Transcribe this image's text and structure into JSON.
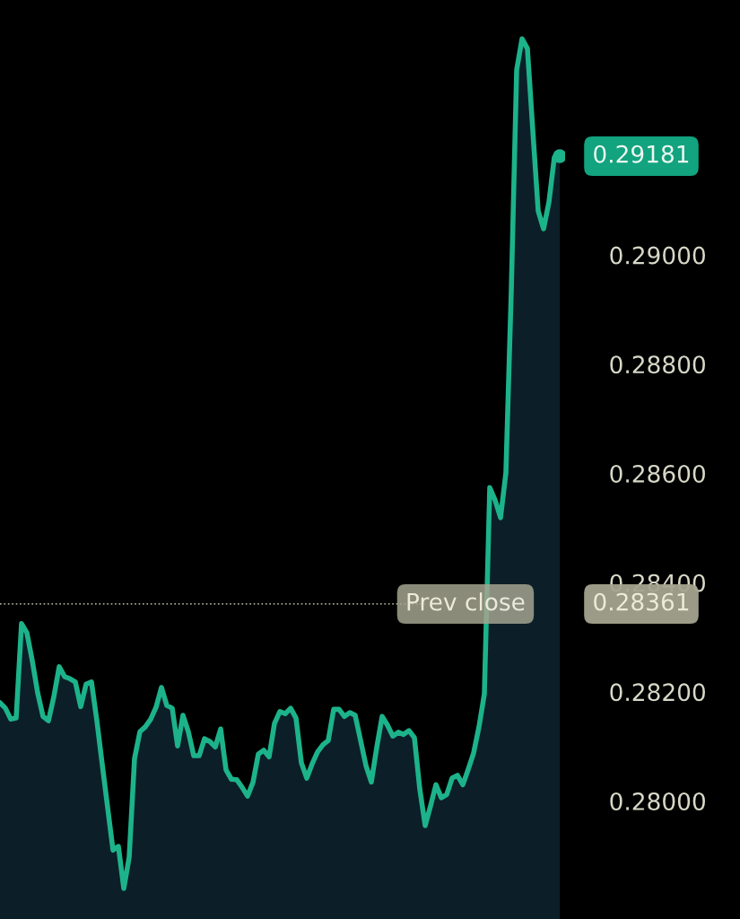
{
  "chart_data": {
    "type": "area",
    "categories": [
      null,
      null,
      null,
      null,
      null,
      null,
      null,
      null,
      null,
      null,
      null,
      null,
      null,
      null,
      null,
      null,
      null,
      null,
      null,
      null,
      null,
      null,
      null,
      null,
      null,
      null,
      null,
      null,
      null,
      null,
      null,
      null,
      null,
      null,
      null,
      null,
      null,
      null,
      null,
      null,
      null,
      null,
      null,
      null,
      null,
      null,
      null,
      null,
      null,
      null,
      null,
      null,
      null,
      null,
      null,
      null,
      null,
      null,
      null,
      null,
      null,
      null,
      null,
      null,
      null,
      null,
      null,
      null,
      null,
      null,
      null,
      null,
      null,
      null,
      null,
      null,
      null,
      null,
      null,
      null,
      null,
      null,
      null,
      null,
      null,
      null,
      null,
      null,
      null,
      null,
      null,
      null,
      null,
      null,
      null,
      null,
      null,
      null,
      null,
      null,
      null,
      null,
      null,
      null,
      null
    ],
    "series": [
      {
        "color": "#1db38a",
        "values": [
          0.2818,
          0.2817,
          0.2815,
          0.28152,
          0.28325,
          0.28308,
          0.28257,
          0.28198,
          0.28155,
          0.28147,
          0.28191,
          0.28246,
          0.28228,
          0.28224,
          0.28218,
          0.28173,
          0.28214,
          0.28218,
          0.28147,
          0.28067,
          0.27988,
          0.2791,
          0.27917,
          0.2784,
          0.27897,
          0.28078,
          0.28127,
          0.28136,
          0.2815,
          0.28172,
          0.28208,
          0.28175,
          0.2817,
          0.28101,
          0.28157,
          0.28127,
          0.28083,
          0.28083,
          0.28114,
          0.28109,
          0.28099,
          0.28132,
          0.28057,
          0.2804,
          0.28039,
          0.28025,
          0.28009,
          0.28034,
          0.28086,
          0.28093,
          0.28081,
          0.28142,
          0.28164,
          0.2816,
          0.2817,
          0.28152,
          0.2807,
          0.28042,
          0.28068,
          0.2809,
          0.28103,
          0.28111,
          0.28168,
          0.28168,
          0.28155,
          0.28162,
          0.28157,
          0.28111,
          0.28065,
          0.28035,
          0.28098,
          0.28155,
          0.28139,
          0.28119,
          0.28126,
          0.28122,
          0.28129,
          0.28116,
          0.28022,
          0.27955,
          0.27991,
          0.2803,
          0.28006,
          0.28012,
          0.28042,
          0.28047,
          0.2803,
          0.28058,
          0.28088,
          0.28136,
          0.28196,
          0.28574,
          0.28551,
          0.28519,
          0.28601,
          0.28934,
          0.29339,
          0.29396,
          0.29378,
          0.29228,
          0.29081,
          0.29048,
          0.29097,
          0.29179,
          0.29181
        ],
        "value_labels": [
          null,
          null,
          null,
          null,
          null,
          null,
          null,
          null,
          null,
          null,
          null,
          null,
          null,
          null,
          null,
          null,
          null,
          null,
          null,
          null,
          null,
          null,
          null,
          null,
          null,
          null,
          null,
          null,
          null,
          null,
          null,
          null,
          null,
          null,
          null,
          null,
          null,
          null,
          null,
          null,
          null,
          null,
          null,
          null,
          null,
          null,
          null,
          null,
          null,
          null,
          null,
          null,
          null,
          null,
          null,
          null,
          null,
          null,
          null,
          null,
          null,
          null,
          null,
          null,
          null,
          null,
          null,
          null,
          null,
          null,
          null,
          null,
          null,
          null,
          null,
          null,
          null,
          null,
          null,
          null,
          null,
          null,
          null,
          null,
          null,
          null,
          null,
          null,
          null,
          null,
          null,
          null,
          null,
          null,
          null,
          null,
          null,
          null,
          null,
          null,
          null,
          null,
          null,
          null,
          "0.29181"
        ]
      }
    ],
    "ylim": [
      0.27784,
      0.29467
    ],
    "yticks": [
      {
        "value": 0.28,
        "label": "0.28000"
      },
      {
        "value": 0.282,
        "label": "0.28200"
      },
      {
        "value": 0.284,
        "label": "0.28400"
      },
      {
        "value": 0.286,
        "label": "0.28600"
      },
      {
        "value": 0.288,
        "label": "0.28800"
      },
      {
        "value": 0.29,
        "label": "0.29000"
      }
    ],
    "tick_labels": "y",
    "grid": false,
    "ref_lines": [
      {
        "axis": "y",
        "value": 0.28361,
        "label": "Prev close",
        "color": "#a3a38f",
        "line_style": "dotted"
      }
    ],
    "annotations": [
      "0.28361"
    ]
  }
}
